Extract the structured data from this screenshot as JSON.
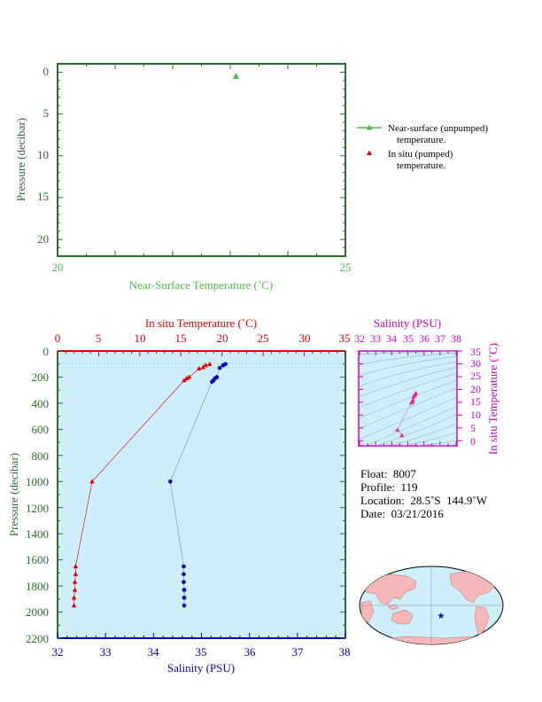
{
  "top_chart": {
    "ylabel": "Pressure (decibar)",
    "xlabel": "Near-Surface Temperature (˚C)",
    "x_ticks": [
      "20",
      "25"
    ],
    "y_ticks": [
      "0",
      "5",
      "10",
      "15",
      "20"
    ],
    "legend": {
      "near_surface": [
        "Near-surface (unpumped)",
        "temperature."
      ],
      "in_situ": [
        "In situ (pumped)",
        "temperature."
      ]
    }
  },
  "main_chart": {
    "top_xlabel": "In situ Temperature (˚C)",
    "bottom_xlabel": "Salinity (PSU)",
    "ylabel": "Pressure (decibar)",
    "top_ticks": [
      "0",
      "5",
      "10",
      "15",
      "20",
      "25",
      "30",
      "35"
    ],
    "bottom_ticks": [
      "32",
      "33",
      "34",
      "35",
      "36",
      "37",
      "38"
    ],
    "y_ticks": [
      "0",
      "200",
      "400",
      "600",
      "800",
      "1000",
      "1200",
      "1400",
      "1600",
      "1800",
      "2000",
      "2200"
    ]
  },
  "ts_chart": {
    "top_label": "Salinity (PSU)",
    "right_label": "In situ Temperature (˚C)",
    "top_ticks": [
      "32",
      "33",
      "34",
      "35",
      "36",
      "37",
      "38"
    ],
    "right_ticks": [
      "35",
      "30",
      "25",
      "20",
      "15",
      "10",
      "5",
      "0"
    ]
  },
  "info": {
    "float": "Float:  8007",
    "profile": "Profile:  119",
    "location": "Location:  28.5˚S  144.9˚W",
    "date": "Date:  03/21/2016"
  },
  "colors": {
    "axis_green": "#2e6b2e",
    "near_surface_green": "#4cbb4c",
    "temperature_red": "#dd0000",
    "salinity_blue": "#0000bb",
    "ts_magenta": "#cc00cc",
    "plot_bg": "#cdeefa"
  },
  "chart_data": [
    {
      "type": "scatter",
      "name": "near-surface",
      "xlim": [
        20,
        25
      ],
      "ylim": [
        22,
        -1
      ],
      "series": [
        {
          "name": "Near-surface (unpumped) temperature.",
          "x": [
            23.1
          ],
          "y": [
            0.5
          ]
        }
      ]
    },
    {
      "type": "line",
      "name": "profile",
      "ylim": [
        2200,
        0
      ],
      "temperature_xlim": [
        0,
        35
      ],
      "salinity_xlim": [
        32,
        38
      ],
      "series": [
        {
          "name": "In situ (pumped) temperature.",
          "pressure": [
            100,
            110,
            125,
            135,
            200,
            210,
            225,
            1000,
            1650,
            1710,
            1770,
            1830,
            1890,
            1950
          ],
          "temperature": [
            18.5,
            18.0,
            17.7,
            17.2,
            16.0,
            15.7,
            15.4,
            4.2,
            2.2,
            2.2,
            2.1,
            2.1,
            2.0,
            2.0
          ]
        },
        {
          "name": "Salinity",
          "pressure": [
            100,
            110,
            130,
            200,
            210,
            225,
            235,
            1000,
            1650,
            1710,
            1770,
            1830,
            1890,
            1950
          ],
          "salinity": [
            35.5,
            35.45,
            35.38,
            35.32,
            35.28,
            35.25,
            35.22,
            34.35,
            34.63,
            34.63,
            34.63,
            34.64,
            34.64,
            34.64
          ]
        }
      ]
    },
    {
      "type": "scatter",
      "name": "ts-diagram",
      "xlim": [
        32,
        38
      ],
      "ylim": [
        -2,
        35
      ],
      "series": [
        {
          "name": "T-S",
          "x": [
            35.5,
            35.45,
            35.4,
            35.38,
            35.32,
            35.3,
            35.28,
            35.25,
            35.22,
            34.35,
            34.63,
            34.64
          ],
          "y": [
            18.5,
            18.0,
            17.7,
            17.2,
            16.0,
            15.7,
            15.4,
            15.0,
            14.8,
            4.2,
            2.2,
            2.0
          ]
        }
      ]
    }
  ]
}
